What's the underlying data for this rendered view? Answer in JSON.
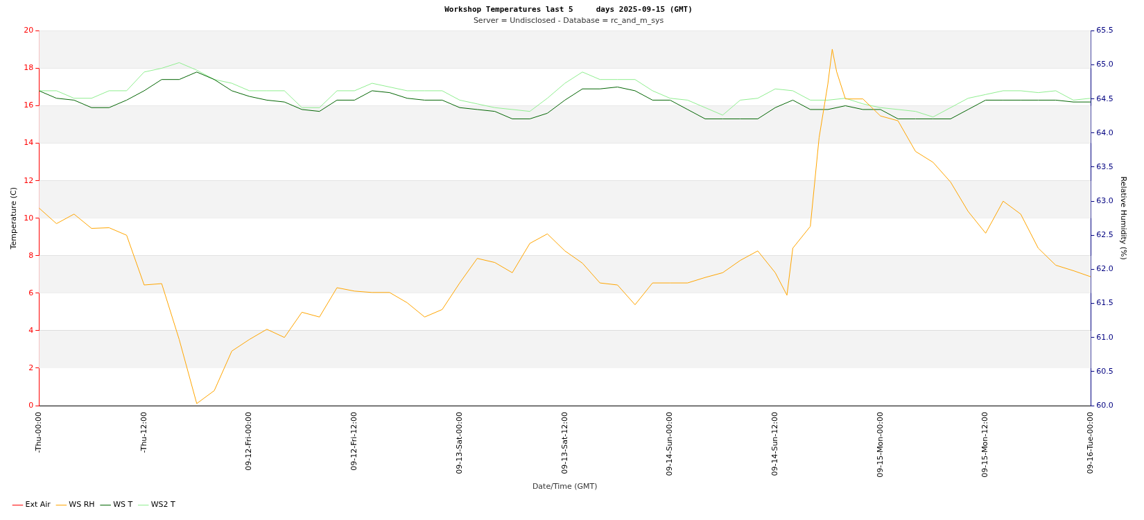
{
  "chart_data": {
    "type": "line",
    "title": "Workshop Temperatures last 5     days 2025-09-15 (GMT)",
    "subtitle": "Server = Undisclosed - Database = rc_and_m_sys",
    "xlabel": "Date/Time (GMT)",
    "ylabel": "Temperature (C)",
    "y2label": "Relative Humidity (%)",
    "x": [
      "2025-09-11T00:00",
      "2025-09-11T02:00",
      "2025-09-11T04:00",
      "2025-09-11T06:00",
      "2025-09-11T08:00",
      "2025-09-11T10:00",
      "2025-09-11T12:00",
      "2025-09-11T14:00",
      "2025-09-11T16:00",
      "2025-09-11T18:00",
      "2025-09-11T20:00",
      "2025-09-11T22:00",
      "2025-09-12T00:00",
      "2025-09-12T02:00",
      "2025-09-12T04:00",
      "2025-09-12T06:00",
      "2025-09-12T08:00",
      "2025-09-12T10:00",
      "2025-09-12T12:00",
      "2025-09-12T14:00",
      "2025-09-12T16:00",
      "2025-09-12T18:00",
      "2025-09-12T20:00",
      "2025-09-12T22:00",
      "2025-09-13T00:00",
      "2025-09-13T02:00",
      "2025-09-13T04:00",
      "2025-09-13T06:00",
      "2025-09-13T08:00",
      "2025-09-13T10:00",
      "2025-09-13T12:00",
      "2025-09-13T14:00",
      "2025-09-13T16:00",
      "2025-09-13T18:00",
      "2025-09-13T20:00",
      "2025-09-13T22:00",
      "2025-09-14T00:00",
      "2025-09-14T02:00",
      "2025-09-14T04:00",
      "2025-09-14T06:00",
      "2025-09-14T08:00",
      "2025-09-14T10:00",
      "2025-09-14T12:00",
      "2025-09-14T14:00",
      "2025-09-14T16:00",
      "2025-09-14T18:00",
      "2025-09-14T20:00",
      "2025-09-14T22:00",
      "2025-09-15T00:00",
      "2025-09-15T02:00",
      "2025-09-15T04:00",
      "2025-09-15T06:00",
      "2025-09-15T08:00",
      "2025-09-15T10:00",
      "2025-09-15T12:00",
      "2025-09-15T14:00",
      "2025-09-15T16:00",
      "2025-09-15T18:00",
      "2025-09-15T20:00",
      "2025-09-15T22:00",
      "2025-09-16T00:00"
    ],
    "series": [
      {
        "name": "Ext Air",
        "color": "#ff0000",
        "values": [
          null,
          null,
          null,
          null,
          null,
          null,
          null,
          null,
          null,
          null,
          null,
          null,
          null,
          null,
          null,
          null,
          null,
          null,
          null,
          null,
          null,
          null,
          null,
          null,
          null,
          null,
          null,
          null,
          null,
          null,
          null,
          null,
          null,
          null,
          null,
          null,
          null,
          null,
          null,
          null,
          null,
          null,
          null,
          null,
          null,
          null,
          null,
          null,
          null,
          null,
          null,
          null,
          null,
          null,
          null,
          null,
          null,
          null,
          null,
          null,
          null
        ]
      },
      {
        "name": "WS RH",
        "color": "#ffa500",
        "axis": "y2",
        "x": [
          "2025-09-11T00:00",
          "2025-09-11T02:00",
          "2025-09-11T04:00",
          "2025-09-11T06:00",
          "2025-09-11T08:00",
          "2025-09-11T10:00",
          "2025-09-11T12:00",
          "2025-09-11T14:00",
          "2025-09-11T16:00",
          "2025-09-11T18:00",
          "2025-09-11T20:00",
          "2025-09-11T22:00",
          "2025-09-12T00:00",
          "2025-09-12T02:00",
          "2025-09-12T04:00",
          "2025-09-12T06:00",
          "2025-09-12T08:00",
          "2025-09-12T10:00",
          "2025-09-12T12:00",
          "2025-09-12T14:00",
          "2025-09-12T16:00",
          "2025-09-12T18:00",
          "2025-09-12T20:00",
          "2025-09-12T22:00",
          "2025-09-13T00:00",
          "2025-09-13T02:00",
          "2025-09-13T04:00",
          "2025-09-13T06:00",
          "2025-09-13T08:00",
          "2025-09-13T10:00",
          "2025-09-13T12:00",
          "2025-09-13T14:00",
          "2025-09-13T16:00",
          "2025-09-13T18:00",
          "2025-09-13T20:00",
          "2025-09-13T22:00",
          "2025-09-14T00:00",
          "2025-09-14T02:00",
          "2025-09-14T04:00",
          "2025-09-14T06:00",
          "2025-09-14T08:00",
          "2025-09-14T10:00",
          "2025-09-14T12:00",
          "2025-09-14T13:20",
          "2025-09-14T14:00",
          "2025-09-14T16:00",
          "2025-09-14T17:00",
          "2025-09-14T18:00",
          "2025-09-14T18:30",
          "2025-09-14T19:00",
          "2025-09-14T20:00",
          "2025-09-14T22:00",
          "2025-09-15T00:00",
          "2025-09-15T02:00",
          "2025-09-15T04:00",
          "2025-09-15T06:00",
          "2025-09-15T08:00",
          "2025-09-15T10:00",
          "2025-09-15T12:00",
          "2025-09-15T14:00",
          "2025-09-15T16:00",
          "2025-09-15T18:00",
          "2025-09-15T20:00",
          "2025-09-15T22:00",
          "2025-09-16T00:00"
        ],
        "values": [
          62.9,
          62.67,
          62.81,
          62.6,
          62.61,
          62.5,
          61.77,
          61.79,
          60.97,
          60.03,
          60.22,
          60.8,
          60.97,
          61.12,
          61.0,
          61.37,
          61.3,
          61.73,
          61.68,
          61.66,
          61.66,
          61.51,
          61.3,
          61.41,
          61.8,
          62.16,
          62.1,
          61.95,
          62.38,
          62.52,
          62.27,
          62.09,
          61.8,
          61.77,
          61.48,
          61.8,
          61.8,
          61.8,
          61.88,
          61.95,
          62.13,
          62.27,
          61.95,
          61.62,
          62.31,
          62.63,
          63.93,
          64.72,
          65.23,
          64.9,
          64.5,
          64.5,
          64.25,
          64.18,
          63.73,
          63.57,
          63.28,
          62.85,
          62.53,
          63.0,
          62.81,
          62.31,
          62.06,
          61.98,
          61.89
        ]
      },
      {
        "name": "WS T",
        "color": "#006400",
        "values": [
          16.8,
          16.4,
          16.3,
          15.9,
          15.9,
          16.3,
          16.8,
          17.4,
          17.4,
          17.8,
          17.4,
          16.8,
          16.5,
          16.3,
          16.2,
          15.8,
          15.7,
          16.3,
          16.3,
          16.8,
          16.7,
          16.4,
          16.3,
          16.3,
          15.9,
          15.8,
          15.7,
          15.3,
          15.3,
          15.6,
          16.3,
          16.9,
          16.9,
          17.0,
          16.8,
          16.3,
          16.3,
          15.8,
          15.3,
          15.3,
          15.3,
          15.3,
          15.9,
          16.3,
          15.8,
          15.8,
          16.0,
          15.8,
          15.8,
          15.3,
          15.3,
          15.3,
          15.3,
          15.8,
          16.3,
          16.3,
          16.3,
          16.3,
          16.3,
          16.2,
          16.2
        ]
      },
      {
        "name": "WS2 T",
        "color": "#90ee90",
        "values": [
          16.8,
          16.8,
          16.4,
          16.4,
          16.8,
          16.8,
          17.8,
          18.0,
          18.3,
          17.9,
          17.4,
          17.2,
          16.8,
          16.8,
          16.8,
          15.9,
          15.9,
          16.8,
          16.8,
          17.2,
          17.0,
          16.8,
          16.8,
          16.8,
          16.3,
          16.1,
          15.9,
          15.8,
          15.7,
          16.4,
          17.2,
          17.8,
          17.4,
          17.4,
          17.4,
          16.8,
          16.4,
          16.3,
          15.9,
          15.5,
          16.3,
          16.4,
          16.9,
          16.8,
          16.3,
          16.3,
          16.4,
          16.1,
          15.9,
          15.8,
          15.7,
          15.4,
          15.9,
          16.4,
          16.6,
          16.8,
          16.8,
          16.7,
          16.8,
          16.3,
          16.4
        ]
      }
    ],
    "xlim": [
      "2025-09-11T00:00",
      "2025-09-16T00:00"
    ],
    "xticks": [
      {
        "value": "2025-09-11T00:00",
        "label": "-Thu-00:00"
      },
      {
        "value": "2025-09-11T12:00",
        "label": "-Thu-12:00"
      },
      {
        "value": "2025-09-12T00:00",
        "label": "09-12-Fri-00:00"
      },
      {
        "value": "2025-09-12T12:00",
        "label": "09-12-Fri-12:00"
      },
      {
        "value": "2025-09-13T00:00",
        "label": "09-13-Sat-00:00"
      },
      {
        "value": "2025-09-13T12:00",
        "label": "09-13-Sat-12:00"
      },
      {
        "value": "2025-09-14T00:00",
        "label": "09-14-Sun-00:00"
      },
      {
        "value": "2025-09-14T12:00",
        "label": "09-14-Sun-12:00"
      },
      {
        "value": "2025-09-15T00:00",
        "label": "09-15-Mon-00:00"
      },
      {
        "value": "2025-09-15T12:00",
        "label": "09-15-Mon-12:00"
      },
      {
        "value": "2025-09-16T00:00",
        "label": "09-16-Tue-00:00"
      }
    ],
    "ylim": [
      0,
      20
    ],
    "yticks": [
      0,
      2,
      4,
      6,
      8,
      10,
      12,
      14,
      16,
      18,
      20
    ],
    "y2lim": [
      60,
      65.5
    ],
    "y2ticks": [
      {
        "value": 60,
        "label": "60.0"
      },
      60.5,
      {
        "value": 61,
        "label": "61.0"
      },
      61.5,
      {
        "value": 62,
        "label": "62.0"
      },
      62.5,
      {
        "value": 63,
        "label": "63.0"
      },
      63.5,
      {
        "value": 64,
        "label": "64.0"
      },
      64.5,
      {
        "value": 65,
        "label": "65.0"
      },
      65.5
    ],
    "grid": "y",
    "legend": "bottom left",
    "marker": "none",
    "line_style": "solid"
  }
}
